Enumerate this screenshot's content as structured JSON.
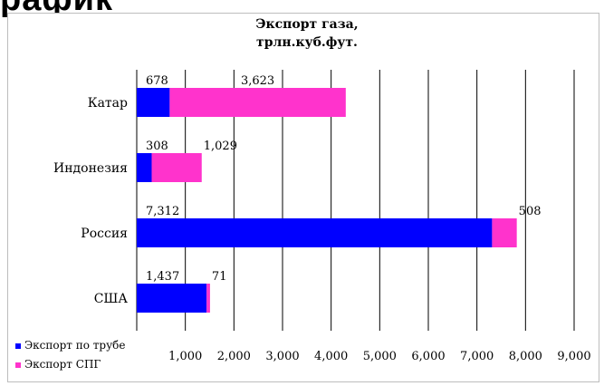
{
  "top_strip_text": "рафик",
  "chart_data": {
    "type": "bar",
    "orientation": "horizontal",
    "stacked": true,
    "title_lines": [
      "Экспорт газа,",
      "трлн.куб.фут."
    ],
    "categories": [
      "Катар",
      "Индонезия",
      "Россия",
      "США"
    ],
    "series": [
      {
        "name": "Экспорт по трубе",
        "values": [
          678,
          308,
          7312,
          1437
        ],
        "labels": [
          "678",
          "308",
          "7,312",
          "1,437"
        ],
        "color": "#0000ff"
      },
      {
        "name": "Экспорт СПГ",
        "values": [
          3623,
          1029,
          508,
          71
        ],
        "labels": [
          "3,623",
          "1,029",
          "508",
          "71"
        ],
        "color": "#ff33cc"
      }
    ],
    "xlim": [
      0,
      9000
    ],
    "x_ticks": [
      1000,
      2000,
      3000,
      4000,
      5000,
      6000,
      7000,
      8000,
      9000
    ],
    "x_tick_labels": [
      "1,000",
      "2,000",
      "3,000",
      "4,000",
      "5,000",
      "6,000",
      "7,000",
      "8,000",
      "9,000"
    ],
    "grid": "vertical",
    "legend_position": "bottom-left"
  }
}
